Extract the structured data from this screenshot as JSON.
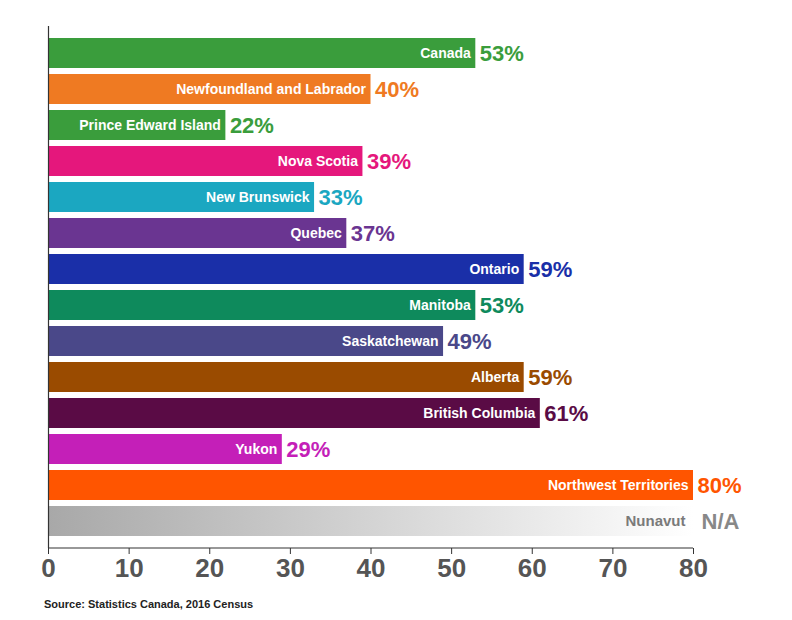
{
  "chart_data": {
    "type": "bar",
    "orientation": "horizontal",
    "source": "Source: Statistics Canada, 2016 Census",
    "categories": [
      "Canada",
      "Newfoundland and Labrador",
      "Prince Edward Island",
      "Nova Scotia",
      "New Brunswick",
      "Quebec",
      "Ontario",
      "Manitoba",
      "Saskatchewan",
      "Alberta",
      "British Columbia",
      "Yukon",
      "Northwest Territories",
      "Nunavut"
    ],
    "values": [
      53,
      40,
      22,
      39,
      33,
      37,
      59,
      53,
      49,
      59,
      61,
      29,
      80,
      null
    ],
    "value_labels": [
      "53%",
      "40%",
      "22%",
      "39%",
      "33%",
      "37%",
      "59%",
      "53%",
      "49%",
      "59%",
      "61%",
      "29%",
      "80%",
      "N/A"
    ],
    "colors": [
      "#3a9d3c",
      "#ef7a22",
      "#3a9d3c",
      "#e5177c",
      "#1ba7c1",
      "#6a3591",
      "#1a2fa8",
      "#0e8a5c",
      "#4a4889",
      "#9a4b00",
      "#5a0b45",
      "#c41fb8",
      "#ff5500",
      "#a8a8a8"
    ],
    "xlim": [
      0,
      80
    ],
    "xticks": [
      0,
      10,
      20,
      30,
      40,
      50,
      60,
      70,
      80
    ],
    "grid": false,
    "data_labels": true,
    "tick_labels": "x"
  }
}
